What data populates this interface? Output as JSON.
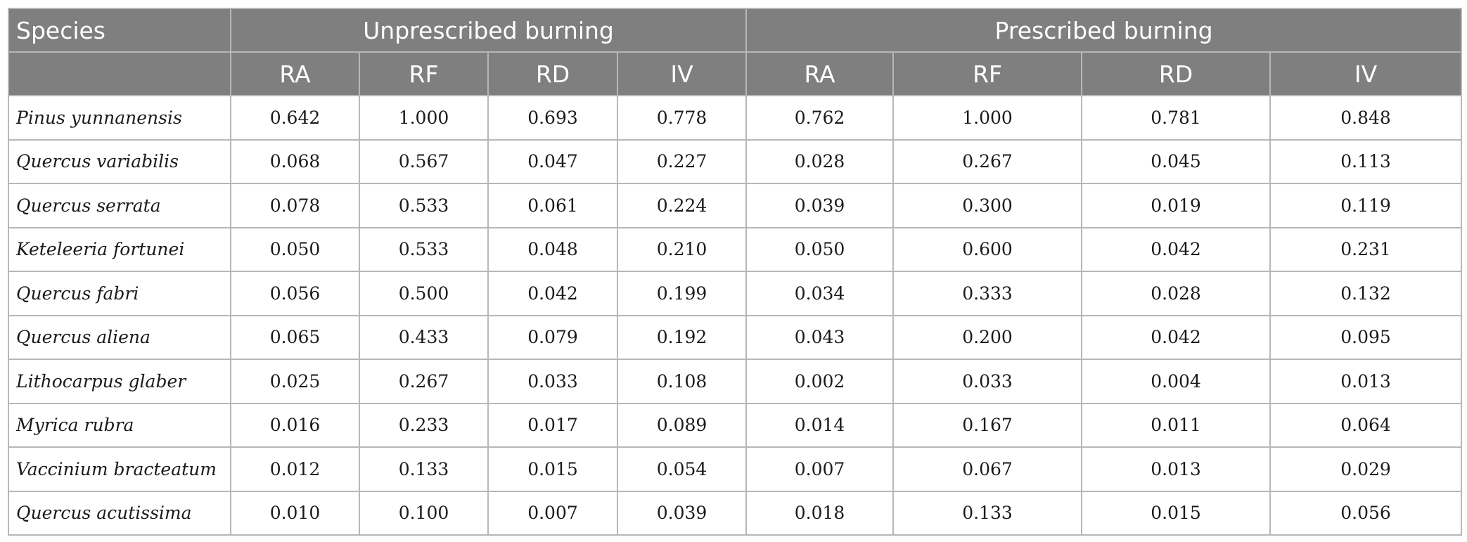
{
  "table": {
    "species_header": "Species",
    "group_headers": [
      "Unprescribed burning",
      "Prescribed burning"
    ],
    "sub_headers": [
      "RA",
      "RF",
      "RD",
      "IV",
      "RA",
      "RF",
      "RD",
      "IV"
    ],
    "rows": [
      {
        "species": "Pinus yunnanensis",
        "values": [
          "0.642",
          "1.000",
          "0.693",
          "0.778",
          "0.762",
          "1.000",
          "0.781",
          "0.848"
        ]
      },
      {
        "species": "Quercus variabilis",
        "values": [
          "0.068",
          "0.567",
          "0.047",
          "0.227",
          "0.028",
          "0.267",
          "0.045",
          "0.113"
        ]
      },
      {
        "species": "Quercus serrata",
        "values": [
          "0.078",
          "0.533",
          "0.061",
          "0.224",
          "0.039",
          "0.300",
          "0.019",
          "0.119"
        ]
      },
      {
        "species": "Keteleeria fortunei",
        "values": [
          "0.050",
          "0.533",
          "0.048",
          "0.210",
          "0.050",
          "0.600",
          "0.042",
          "0.231"
        ]
      },
      {
        "species": "Quercus fabri",
        "values": [
          "0.056",
          "0.500",
          "0.042",
          "0.199",
          "0.034",
          "0.333",
          "0.028",
          "0.132"
        ]
      },
      {
        "species": "Quercus aliena",
        "values": [
          "0.065",
          "0.433",
          "0.079",
          "0.192",
          "0.043",
          "0.200",
          "0.042",
          "0.095"
        ]
      },
      {
        "species": "Lithocarpus glaber",
        "values": [
          "0.025",
          "0.267",
          "0.033",
          "0.108",
          "0.002",
          "0.033",
          "0.004",
          "0.013"
        ]
      },
      {
        "species": "Myrica rubra",
        "values": [
          "0.016",
          "0.233",
          "0.017",
          "0.089",
          "0.014",
          "0.167",
          "0.011",
          "0.064"
        ]
      },
      {
        "species": "Vaccinium bracteatum",
        "values": [
          "0.012",
          "0.133",
          "0.015",
          "0.054",
          "0.007",
          "0.067",
          "0.013",
          "0.029"
        ]
      },
      {
        "species": "Quercus acutissima",
        "values": [
          "0.010",
          "0.100",
          "0.007",
          "0.039",
          "0.018",
          "0.133",
          "0.015",
          "0.056"
        ]
      }
    ]
  },
  "colors": {
    "header_bg": "#7f7f7f",
    "header_text": "#ffffff",
    "border": "#b7b7b7",
    "body_text": "#1a1a1a"
  }
}
